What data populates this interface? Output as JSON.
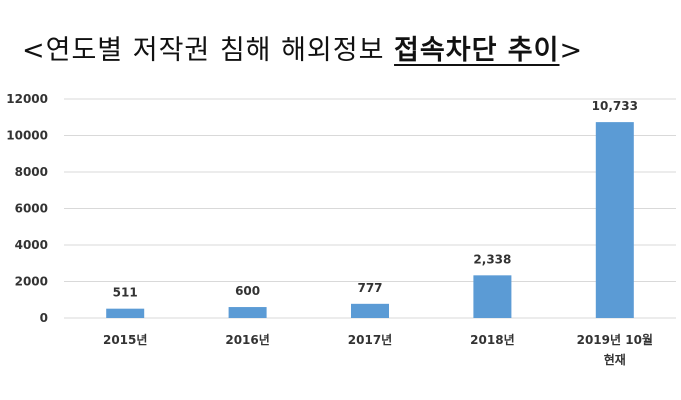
{
  "title": {
    "open": "<",
    "plain": "연도별 저작권 침해 해외정보 ",
    "strong": "접속차단 추이",
    "close": ">"
  },
  "chart_data": {
    "type": "bar",
    "title": "<연도별 저작권 침해 해외정보 접속차단 추이>",
    "categories": [
      [
        "2015년"
      ],
      [
        "2016년"
      ],
      [
        "2017년"
      ],
      [
        "2018년"
      ],
      [
        "2019년 10월",
        "현재"
      ]
    ],
    "values": [
      511,
      600,
      777,
      2338,
      10733
    ],
    "value_labels": [
      "511",
      "600",
      "777",
      "2,338",
      "10,733"
    ],
    "y_ticks": [
      0,
      2000,
      4000,
      6000,
      8000,
      10000,
      12000
    ],
    "ylim": [
      0,
      12000
    ],
    "grid": true,
    "bar_color": "#5b9bd5",
    "grid_color": "#d9d9d9"
  }
}
